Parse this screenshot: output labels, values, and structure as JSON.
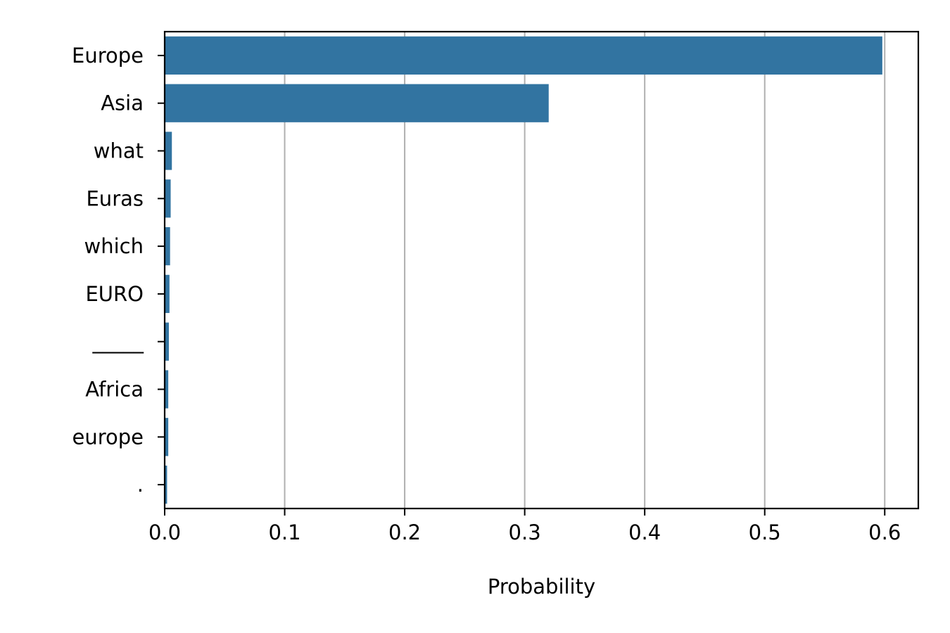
{
  "chart_data": {
    "type": "bar",
    "orientation": "horizontal",
    "categories": [
      "Europe",
      "Asia",
      "what",
      "Euras",
      "which",
      "EURO",
      "_____",
      "Africa",
      "europe",
      "."
    ],
    "values": [
      0.598,
      0.32,
      0.006,
      0.005,
      0.0045,
      0.004,
      0.0035,
      0.003,
      0.003,
      0.002
    ],
    "title": "",
    "xlabel": "Probability",
    "ylabel": "",
    "xlim": [
      0,
      0.628
    ],
    "xticks": [
      0.0,
      0.1,
      0.2,
      0.3,
      0.4,
      0.5,
      0.6
    ],
    "xtick_labels": [
      "0.0",
      "0.1",
      "0.2",
      "0.3",
      "0.4",
      "0.5",
      "0.6"
    ],
    "grid": "x-major",
    "colors": {
      "bar": "#3274a1",
      "grid": "#b0b0b0",
      "axis": "#000000"
    }
  }
}
